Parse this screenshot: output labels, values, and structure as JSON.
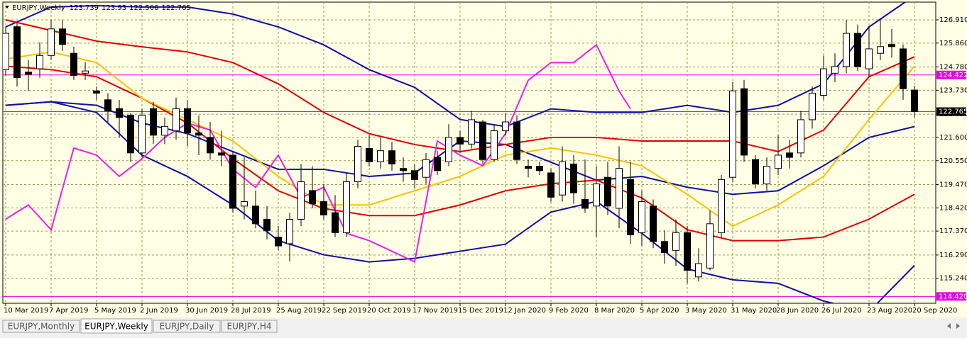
{
  "chart_data": {
    "type": "candlestick",
    "symbol": "EURJPY,Weekly",
    "categories": [
      "10 Mar 2019",
      null,
      null,
      null,
      "7 Apr 2019",
      null,
      null,
      null,
      "5 May 2019",
      null,
      null,
      null,
      "2 Jun 2019",
      null,
      null,
      null,
      "30 Jun 2019",
      null,
      null,
      null,
      "28 Jul 2019",
      null,
      null,
      null,
      "25 Aug 2019",
      null,
      null,
      null,
      "22 Sep 2019",
      null,
      null,
      null,
      "20 Oct 2019",
      null,
      null,
      null,
      "17 Nov 2019",
      null,
      null,
      null,
      "15 Dec 2019",
      null,
      null,
      null,
      "12 Jan 2020",
      null,
      null,
      null,
      "9 Feb 2020",
      null,
      null,
      null,
      "8 Mar 2020",
      null,
      null,
      null,
      "5 Apr 2020",
      null,
      null,
      null,
      "3 May 2020",
      null,
      null,
      null,
      "31 May 2020",
      null,
      null,
      null,
      "28 Jun 2020",
      null,
      null,
      null,
      "26 Jul 2020",
      null,
      null,
      null,
      "23 Aug 2020",
      null,
      null,
      null,
      "20 Sep 2020"
    ],
    "open": [
      124.66,
      126.6,
      124.55,
      124.7,
      125.3,
      126.5,
      125.4,
      124.5,
      123.7,
      123.3,
      122.9,
      122.6,
      120.9,
      122.9,
      121.7,
      121.9,
      122.9,
      121.8,
      121.6,
      120.9,
      120.8,
      118.5,
      118.5,
      117.9,
      117.1,
      116.8,
      117.9,
      119.2,
      118.7,
      118.2,
      117.3,
      119.6,
      121.1,
      120.5,
      121.0,
      120.2,
      120.1,
      119.8,
      120.7,
      120.5,
      121.6,
      121.3,
      122.3,
      120.6,
      121.9,
      122.3,
      120.3,
      120.3,
      120.0,
      119.0,
      120.4,
      118.8,
      118.5,
      119.8,
      118.4,
      119.7,
      117.3,
      118.5,
      116.9,
      116.5,
      117.3,
      115.3,
      115.7,
      117.3,
      119.8,
      123.8,
      120.6,
      119.5,
      120.2,
      120.9,
      120.9,
      122.4,
      123.5,
      124.5,
      124.8,
      126.3,
      124.7,
      125.4,
      125.8,
      125.6,
      123.739
    ],
    "high": [
      126.6,
      126.8,
      125.1,
      125.9,
      126.9,
      126.9,
      125.7,
      125.0,
      123.9,
      123.6,
      123.3,
      122.7,
      122.9,
      123.2,
      122.5,
      123.4,
      123.3,
      122.6,
      122.3,
      121.9,
      121.0,
      120.7,
      119.2,
      118.5,
      117.6,
      118.2,
      120.4,
      120.3,
      119.5,
      119.0,
      120.0,
      121.5,
      121.7,
      121.6,
      121.4,
      120.7,
      120.4,
      120.9,
      121.0,
      122.2,
      121.9,
      122.8,
      122.4,
      122.2,
      122.7,
      122.6,
      120.6,
      120.5,
      120.2,
      121.2,
      120.8,
      120.6,
      120.3,
      120.5,
      121.2,
      120.5,
      119.2,
      118.8,
      117.4,
      117.9,
      117.6,
      116.6,
      118.3,
      119.9,
      124.1,
      124.2,
      120.8,
      120.7,
      121.7,
      121.5,
      122.8,
      123.9,
      125.3,
      125.4,
      126.9,
      126.7,
      126.6,
      126.9,
      126.5,
      125.8,
      123.93
    ],
    "low": [
      124.4,
      123.9,
      123.7,
      124.3,
      125.1,
      125.5,
      124.2,
      124.2,
      123.3,
      122.3,
      121.6,
      120.5,
      120.7,
      121.3,
      121.3,
      121.5,
      121.2,
      120.8,
      120.6,
      120.3,
      118.2,
      117.9,
      117.5,
      117.0,
      116.5,
      116.0,
      117.6,
      118.4,
      117.9,
      117.1,
      117.1,
      119.3,
      120.3,
      120.2,
      120.1,
      119.6,
      119.3,
      119.5,
      119.9,
      120.3,
      120.9,
      121.1,
      120.4,
      120.5,
      121.7,
      120.4,
      119.8,
      119.9,
      118.7,
      118.7,
      118.6,
      118.2,
      117.1,
      118.1,
      117.5,
      116.8,
      116.7,
      116.6,
      115.9,
      115.8,
      115.0,
      115.1,
      115.6,
      117.1,
      119.6,
      120.5,
      119.3,
      119.2,
      119.9,
      120.2,
      120.7,
      122.0,
      123.3,
      124.1,
      124.5,
      124.6,
      124.3,
      125.1,
      125.2,
      123.3,
      122.506
    ],
    "close": [
      126.3,
      124.3,
      124.45,
      125.3,
      126.5,
      125.8,
      124.4,
      124.6,
      123.6,
      122.8,
      122.5,
      120.9,
      122.6,
      121.7,
      122.1,
      122.9,
      121.8,
      121.7,
      120.9,
      120.8,
      118.4,
      118.7,
      117.7,
      117.4,
      116.7,
      117.9,
      119.6,
      118.6,
      118.1,
      117.3,
      119.6,
      121.2,
      120.5,
      121.0,
      120.4,
      120.1,
      119.7,
      120.6,
      120.1,
      121.6,
      121.3,
      122.4,
      120.6,
      121.9,
      122.3,
      120.6,
      120.2,
      120.1,
      118.9,
      120.5,
      119.1,
      118.4,
      119.5,
      118.5,
      120.2,
      117.2,
      118.7,
      116.9,
      116.4,
      117.3,
      115.6,
      115.9,
      117.7,
      119.7,
      123.7,
      120.8,
      119.5,
      120.3,
      120.8,
      120.7,
      122.4,
      123.6,
      124.7,
      124.8,
      126.3,
      124.8,
      125.6,
      125.7,
      125.7,
      123.8,
      122.765
    ],
    "up_color": "#ffffff",
    "down_color": "#000000",
    "lines": [
      {
        "color": "#1010a0",
        "x": [
          0,
          4,
          8,
          12,
          16,
          20,
          24,
          28,
          32,
          36,
          40,
          44,
          48,
          52,
          56,
          60,
          64,
          68,
          72,
          76,
          80
        ],
        "values": [
          126.59,
          127.49,
          127.55,
          127.49,
          127.49,
          127.17,
          126.59,
          125.78,
          124.66,
          123.86,
          122.41,
          122.09,
          122.89,
          122.73,
          122.73,
          123.05,
          122.73,
          123.05,
          124.02,
          126.59,
          128.0
        ]
      },
      {
        "color": "#1010a0",
        "x": [
          0,
          4,
          8,
          12,
          16,
          20,
          24,
          28,
          32,
          36,
          40,
          44,
          48,
          52,
          56,
          60,
          64,
          68,
          72,
          76,
          80
        ],
        "values": [
          123.05,
          123.21,
          123.05,
          122.25,
          121.77,
          120.96,
          120.16,
          120.16,
          119.84,
          119.99,
          121.44,
          121.28,
          120.48,
          119.67,
          119.84,
          119.35,
          119.03,
          119.19,
          120.32,
          121.6,
          122.09
        ]
      },
      {
        "color": "#1010a0",
        "x": [
          0,
          4,
          8,
          12,
          16,
          20,
          24,
          28,
          32,
          36,
          40,
          44,
          48,
          52,
          56,
          60,
          64,
          68,
          72,
          76,
          80
        ],
        "values": [
          123.05,
          123.21,
          122.73,
          120.8,
          119.84,
          118.55,
          116.94,
          116.3,
          115.98,
          116.14,
          116.46,
          116.78,
          118.23,
          118.71,
          117.27,
          115.66,
          115.17,
          115.01,
          114.21,
          113.73,
          115.82
        ]
      },
      {
        "color": "#e00000",
        "x": [
          0,
          4,
          8,
          12,
          16,
          20,
          24,
          28,
          32,
          36,
          40,
          44,
          48,
          52,
          56,
          60,
          64,
          68,
          72,
          76,
          80
        ],
        "values": [
          126.91,
          126.43,
          125.95,
          125.69,
          125.46,
          124.98,
          124.02,
          122.73,
          121.77,
          121.28,
          120.96,
          121.28,
          121.6,
          121.6,
          121.44,
          121.44,
          121.44,
          120.96,
          121.93,
          124.34,
          125.24
        ]
      },
      {
        "color": "#e00000",
        "x": [
          0,
          4,
          8,
          12,
          16,
          20,
          24,
          28,
          32,
          36,
          40,
          44,
          48,
          52,
          56,
          60,
          64,
          68,
          72,
          76,
          80
        ],
        "values": [
          124.82,
          124.66,
          124.34,
          123.37,
          122.25,
          120.64,
          119.19,
          118.39,
          118.07,
          118.07,
          118.55,
          119.19,
          119.51,
          119.67,
          118.87,
          117.43,
          116.94,
          116.94,
          117.1,
          117.91,
          119.03
        ]
      },
      {
        "color": "#f5c400",
        "x": [
          0,
          4,
          8,
          12,
          16,
          20,
          24,
          28,
          32,
          36,
          40,
          44,
          48,
          52,
          56,
          60,
          64,
          68,
          72,
          76,
          80
        ],
        "values": [
          125.14,
          125.46,
          124.98,
          123.37,
          122.41,
          121.44,
          119.84,
          118.55,
          118.55,
          119.19,
          119.84,
          120.8,
          121.12,
          120.8,
          120.32,
          119.03,
          117.59,
          118.55,
          119.84,
          122.41,
          124.82
        ]
      },
      {
        "color": "#ee22dd",
        "x": [
          0,
          2,
          4,
          6,
          8,
          10,
          12,
          14,
          16,
          18,
          20,
          22,
          24,
          26,
          28,
          30,
          32,
          34,
          36,
          38,
          40,
          42,
          44,
          46,
          48,
          50,
          52,
          54,
          55
        ],
        "values": [
          117.91,
          118.55,
          117.43,
          121.12,
          120.8,
          119.84,
          120.64,
          121.6,
          122.25,
          121.93,
          120.16,
          119.35,
          120.8,
          118.87,
          119.35,
          117.27,
          116.94,
          116.46,
          115.98,
          121.44,
          120.8,
          120.32,
          121.77,
          124.18,
          124.98,
          124.98,
          125.78,
          123.69,
          122.89
        ]
      }
    ],
    "levels": [
      {
        "value": 124.422,
        "color": "#e600e6"
      },
      {
        "value": 114.42,
        "label": "114.420",
        "color": "#e600e6"
      }
    ],
    "ylim": [
      114.11,
      127.71
    ],
    "yticks": [
      {
        "value": 126.91,
        "label": "126.910"
      },
      {
        "value": 125.86,
        "label": "125.860"
      },
      {
        "value": 124.78,
        "label": "124.780"
      },
      {
        "value": 123.73,
        "label": "123.730"
      },
      {
        "value": 122.65,
        "label": "122.650"
      },
      {
        "value": 121.6,
        "label": "121.600"
      },
      {
        "value": 120.55,
        "label": "120.550"
      },
      {
        "value": 119.47,
        "label": "119.470"
      },
      {
        "value": 118.42,
        "label": "118.420"
      },
      {
        "value": 117.37,
        "label": "117.370"
      },
      {
        "value": 116.29,
        "label": "116.290"
      },
      {
        "value": 115.24,
        "label": "115.240"
      }
    ],
    "grid": true
  },
  "tabs": {
    "items": [
      "EURJPY,Monthly",
      "EURJPY,Weekly",
      "EURJPY,Daily",
      "EURJPY,H4"
    ],
    "active": 1
  }
}
